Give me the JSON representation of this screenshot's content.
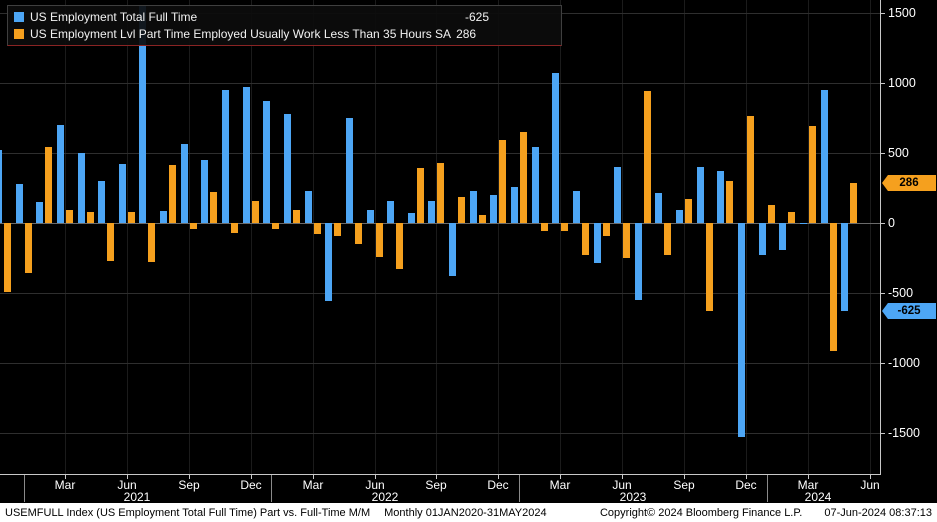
{
  "colors": {
    "full_time": "#4DA6F5",
    "part_time": "#F5A01E",
    "background": "#000000",
    "grid": "#2e2e2e",
    "axis": "#c8c8c8"
  },
  "legend": {
    "items": [
      {
        "label": "US Employment Total Full Time",
        "value": "-625",
        "color": "#4DA6F5"
      },
      {
        "label": "US Employment Lvl Part Time Employed Usually Work Less Than 35 Hours SA",
        "value": "286",
        "color": "#F5A01E"
      }
    ]
  },
  "axis": {
    "y_ticks": [
      "1500",
      "1000",
      "500",
      "0",
      "-500",
      "-1000",
      "-1500"
    ],
    "x_ticks": [
      "Mar",
      "Jun",
      "Sep",
      "Dec",
      "Mar",
      "Jun",
      "Sep",
      "Dec",
      "Mar",
      "Jun",
      "Sep",
      "Dec",
      "Mar",
      "Jun"
    ],
    "years": [
      "2021",
      "2022",
      "2023",
      "2024"
    ],
    "callouts": [
      {
        "text": "286",
        "value": 286,
        "color_key": "part_time"
      },
      {
        "text": "-625",
        "value": -625,
        "color_key": "full_time"
      }
    ]
  },
  "footer": {
    "left": "USEMFULL Index (US Employment Total Full Time) Part vs. Full-Time M/M",
    "range": "Monthly 01JAN2020-31MAY2024",
    "copyright": "Copyright© 2024 Bloomberg Finance L.P.",
    "datetime": "07-Jun-2024 08:37:13"
  },
  "chart_data": {
    "type": "bar",
    "title": "US Employment Part-Time vs Full-Time M/M change (thousands)",
    "xlabel": "",
    "ylabel": "",
    "ylim": [
      -1500,
      1500
    ],
    "ytick_step": 500,
    "grid": true,
    "legend_position": "top-left",
    "last_values": {
      "full_time": -625,
      "part_time": 286
    },
    "categories": [
      "Dec 2020",
      "Jan 2021",
      "Feb 2021",
      "Mar 2021",
      "Apr 2021",
      "May 2021",
      "Jun 2021",
      "Jul 2021",
      "Aug 2021",
      "Sep 2021",
      "Oct 2021",
      "Nov 2021",
      "Dec 2021",
      "Jan 2022",
      "Feb 2022",
      "Mar 2022",
      "Apr 2022",
      "May 2022",
      "Jun 2022",
      "Jul 2022",
      "Aug 2022",
      "Sep 2022",
      "Oct 2022",
      "Nov 2022",
      "Dec 2022",
      "Jan 2023",
      "Feb 2023",
      "Mar 2023",
      "Apr 2023",
      "May 2023",
      "Jun 2023",
      "Jul 2023",
      "Aug 2023",
      "Sep 2023",
      "Oct 2023",
      "Nov 2023",
      "Dec 2023",
      "Jan 2024",
      "Feb 2024",
      "Mar 2024",
      "Apr 2024",
      "May 2024"
    ],
    "series": [
      {
        "name": "US Employment Total Full Time",
        "color": "#4DA6F5",
        "values": [
          520,
          280,
          150,
          700,
          500,
          300,
          420,
          1550,
          85,
          565,
          450,
          950,
          975,
          870,
          780,
          230,
          -560,
          750,
          90,
          160,
          75,
          160,
          -380,
          230,
          200,
          260,
          545,
          1070,
          230,
          -285,
          400,
          -550,
          215,
          95,
          400,
          370,
          -1531,
          -230,
          -190,
          -6,
          949,
          -625
        ]
      },
      {
        "name": "US Employment Lvl Part Time Employed Usually Work Less Than 35 Hours SA",
        "color": "#F5A01E",
        "values": [
          -490,
          -360,
          545,
          90,
          80,
          -270,
          80,
          -280,
          415,
          -45,
          225,
          -70,
          160,
          -45,
          95,
          -75,
          -90,
          -150,
          -240,
          -330,
          390,
          430,
          185,
          55,
          590,
          650,
          -60,
          -55,
          -230,
          -95,
          -250,
          945,
          -230,
          175,
          -625,
          300,
          762,
          130,
          80,
          691,
          -914,
          286
        ]
      }
    ]
  }
}
